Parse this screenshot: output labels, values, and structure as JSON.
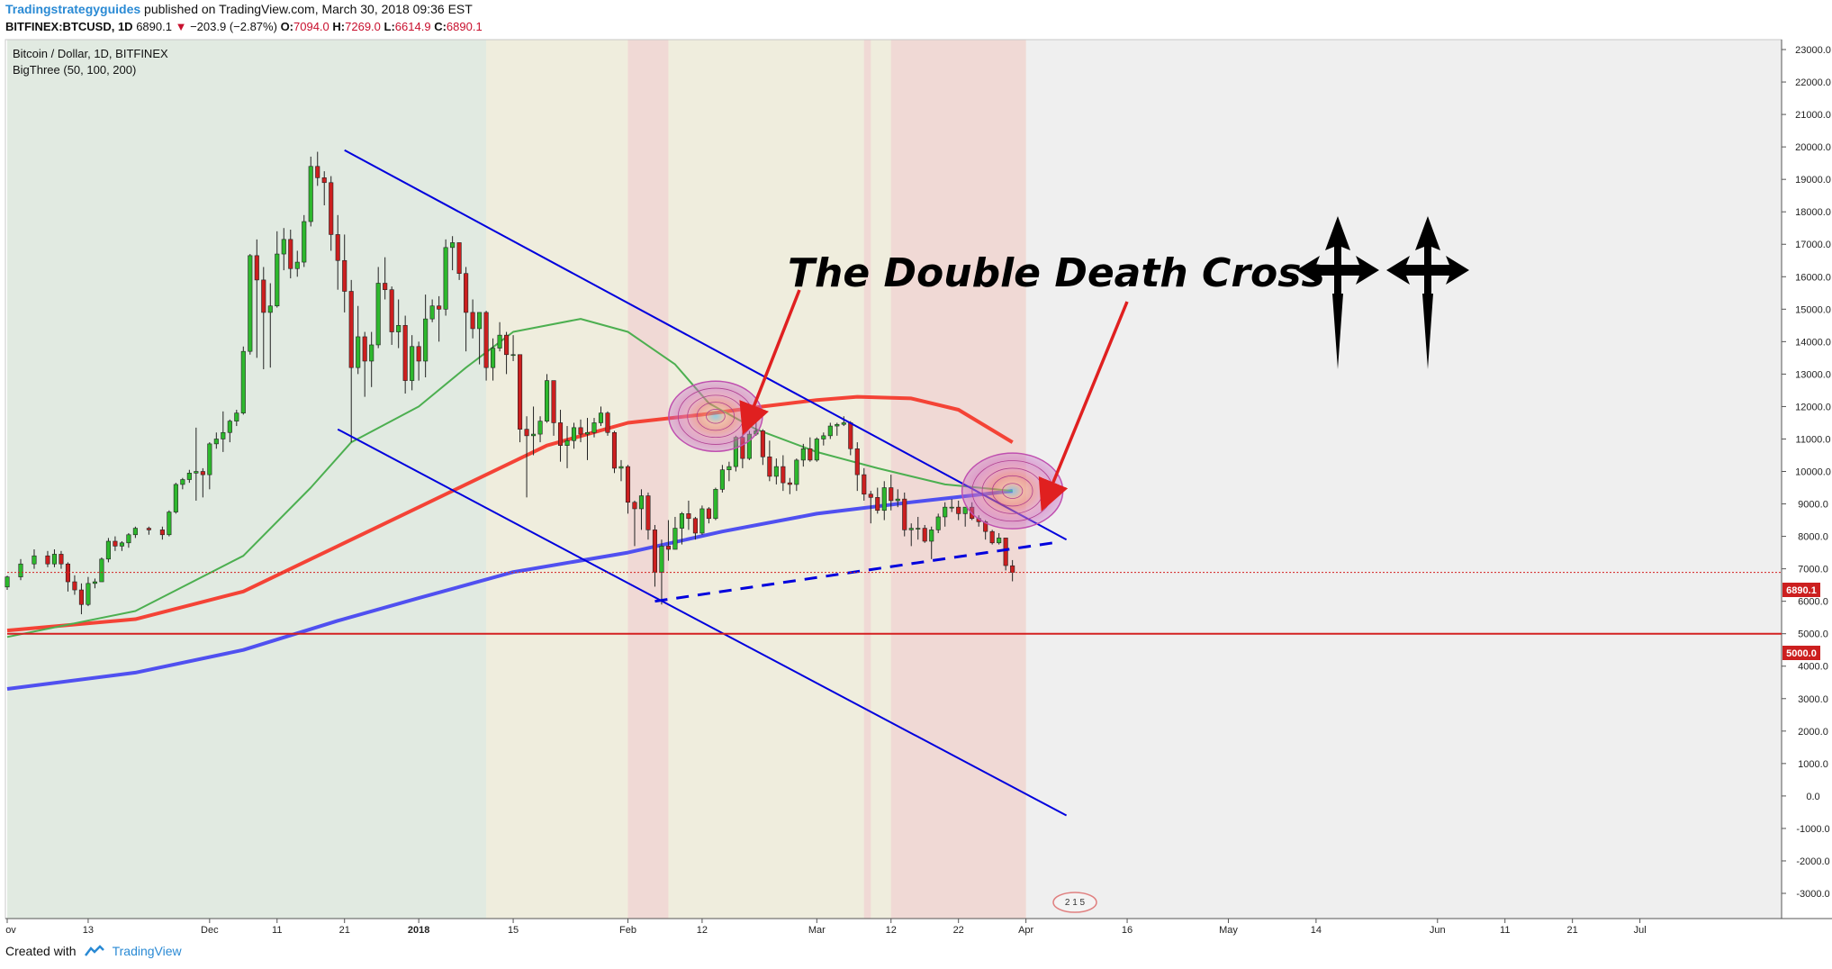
{
  "header": {
    "author": "Tradingstrategyguides",
    "published": "published on TradingView.com, March 30, 2018 09:36 EST",
    "symbol": "BITFINEX:BTCUSD, 1D",
    "last": "6890.1",
    "change": "−203.9 (−2.87%)",
    "o_label": "O:",
    "o": "7094.0",
    "h_label": "H:",
    "h": "7269.0",
    "l_label": "L:",
    "l": "6614.9",
    "c_label": "C:",
    "c": "6890.1"
  },
  "legend": {
    "title": "Bitcoin / Dollar, 1D, BITFINEX",
    "indicator": "BigThree (50, 100, 200)"
  },
  "annotation": {
    "text": "The Double Death Cross"
  },
  "price_tags": {
    "last": "6890.1",
    "level": "5000.0"
  },
  "badge": "2 1 5",
  "footer": {
    "created_with": "Created with",
    "brand": "TradingView"
  },
  "colors": {
    "up": "#2db82d",
    "down": "#cc1f1f",
    "sma50": "#4caf50",
    "sma100": "#f44336",
    "sma200": "#5050f0",
    "trend": "#0000dd",
    "level": "#d42020",
    "annotation_arrow": "#e02020"
  },
  "chart_data": {
    "type": "candlestick",
    "title": "Bitcoin / Dollar, 1D, BITFINEX",
    "y_ticks": [
      "23000.0",
      "22000.0",
      "21000.0",
      "20000.0",
      "19000.0",
      "18000.0",
      "17000.0",
      "16000.0",
      "15000.0",
      "14000.0",
      "13000.0",
      "12000.0",
      "11000.0",
      "10000.0",
      "9000.0",
      "8000.0",
      "7000.0",
      "6000.0",
      "5000.0",
      "4000.0",
      "3000.0",
      "2000.0",
      "1000.0",
      "0.0",
      "-1000.0",
      "-2000.0",
      "-3000.0"
    ],
    "ylim": [
      -3000,
      23500
    ],
    "x_ticks": [
      "ov",
      "13",
      "Dec",
      "11",
      "21",
      "2018",
      "15",
      "Feb",
      "12",
      "Mar",
      "12",
      "22",
      "Apr",
      "16",
      "May",
      "14",
      "Jun",
      "11",
      "21",
      "Jul"
    ],
    "x_tick_dates": [
      "2017-11-01",
      "2017-11-13",
      "2017-12-01",
      "2017-12-11",
      "2017-12-21",
      "2018-01-01",
      "2018-01-15",
      "2018-02-01",
      "2018-02-12",
      "2018-03-01",
      "2018-03-12",
      "2018-03-22",
      "2018-04-01",
      "2018-04-16",
      "2018-05-01",
      "2018-05-14",
      "2018-06-01",
      "2018-06-11",
      "2018-06-21",
      "2018-07-01"
    ],
    "x_start": "2017-11-01",
    "x_end": "2018-07-22",
    "candles": [
      [
        "2017-11-01",
        6440,
        6790,
        6350,
        6750
      ],
      [
        "2017-11-03",
        6750,
        7300,
        6650,
        7150
      ],
      [
        "2017-11-05",
        7150,
        7600,
        7000,
        7400
      ],
      [
        "2017-11-07",
        7400,
        7550,
        7050,
        7150
      ],
      [
        "2017-11-08",
        7150,
        7600,
        7050,
        7450
      ],
      [
        "2017-11-09",
        7450,
        7550,
        7000,
        7150
      ],
      [
        "2017-11-10",
        7150,
        7200,
        6300,
        6600
      ],
      [
        "2017-11-11",
        6600,
        6800,
        6200,
        6350
      ],
      [
        "2017-11-12",
        6350,
        6550,
        5600,
        5900
      ],
      [
        "2017-11-13",
        5900,
        6750,
        5850,
        6550
      ],
      [
        "2017-11-14",
        6550,
        6700,
        6400,
        6600
      ],
      [
        "2017-11-15",
        6600,
        7350,
        6600,
        7300
      ],
      [
        "2017-11-16",
        7300,
        7950,
        7200,
        7850
      ],
      [
        "2017-11-17",
        7850,
        8000,
        7550,
        7700
      ],
      [
        "2017-11-18",
        7700,
        7850,
        7550,
        7800
      ],
      [
        "2017-11-19",
        7800,
        8100,
        7650,
        8050
      ],
      [
        "2017-11-20",
        8050,
        8300,
        7950,
        8250
      ],
      [
        "2017-11-22",
        8250,
        8300,
        8050,
        8200
      ],
      [
        "2017-11-24",
        8200,
        8300,
        7900,
        8050
      ],
      [
        "2017-11-25",
        8050,
        8800,
        8000,
        8750
      ],
      [
        "2017-11-26",
        8750,
        9650,
        8700,
        9600
      ],
      [
        "2017-11-27",
        9600,
        9800,
        9450,
        9750
      ],
      [
        "2017-11-28",
        9750,
        10050,
        9650,
        9950
      ],
      [
        "2017-11-29",
        9950,
        11350,
        9100,
        10000
      ],
      [
        "2017-11-30",
        10000,
        10100,
        9200,
        9900
      ],
      [
        "2017-12-01",
        9900,
        10900,
        9450,
        10850
      ],
      [
        "2017-12-02",
        10850,
        11200,
        10700,
        11000
      ],
      [
        "2017-12-03",
        11000,
        11850,
        10600,
        11200
      ],
      [
        "2017-12-04",
        11200,
        11600,
        10900,
        11550
      ],
      [
        "2017-12-05",
        11550,
        11900,
        11400,
        11800
      ],
      [
        "2017-12-06",
        11800,
        13850,
        11750,
        13700
      ],
      [
        "2017-12-07",
        13700,
        16700,
        13600,
        16650
      ],
      [
        "2017-12-08",
        16650,
        17150,
        13500,
        15900
      ],
      [
        "2017-12-09",
        15900,
        16300,
        13150,
        14900
      ],
      [
        "2017-12-10",
        14900,
        15800,
        13200,
        15100
      ],
      [
        "2017-12-11",
        15100,
        17400,
        15050,
        16700
      ],
      [
        "2017-12-12",
        16700,
        17500,
        16200,
        17150
      ],
      [
        "2017-12-13",
        17150,
        17450,
        15950,
        16250
      ],
      [
        "2017-12-14",
        16250,
        16800,
        16000,
        16450
      ],
      [
        "2017-12-15",
        16450,
        17900,
        16300,
        17700
      ],
      [
        "2017-12-16",
        17700,
        19700,
        17550,
        19400
      ],
      [
        "2017-12-17",
        19400,
        19850,
        18800,
        19050
      ],
      [
        "2017-12-18",
        19050,
        19250,
        18200,
        18900
      ],
      [
        "2017-12-19",
        18900,
        19100,
        16800,
        17300
      ],
      [
        "2017-12-20",
        17300,
        17900,
        15600,
        16500
      ],
      [
        "2017-12-21",
        16500,
        17300,
        14900,
        15550
      ],
      [
        "2017-12-22",
        15550,
        15900,
        10900,
        13200
      ],
      [
        "2017-12-23",
        13200,
        15100,
        13000,
        14150
      ],
      [
        "2017-12-24",
        14150,
        14300,
        12300,
        13400
      ],
      [
        "2017-12-25",
        13400,
        14300,
        12600,
        13900
      ],
      [
        "2017-12-26",
        13900,
        16300,
        13800,
        15800
      ],
      [
        "2017-12-27",
        15800,
        16600,
        15300,
        15600
      ],
      [
        "2017-12-28",
        15600,
        15700,
        13900,
        14300
      ],
      [
        "2017-12-29",
        14300,
        15300,
        13800,
        14500
      ],
      [
        "2017-12-30",
        14500,
        14800,
        12400,
        12800
      ],
      [
        "2017-12-31",
        12800,
        14200,
        12500,
        13850
      ],
      [
        "2018-01-01",
        13850,
        14000,
        12800,
        13400
      ],
      [
        "2018-01-02",
        13400,
        15450,
        12900,
        14700
      ],
      [
        "2018-01-03",
        14700,
        15300,
        14600,
        15100
      ],
      [
        "2018-01-04",
        15100,
        15400,
        14000,
        15000
      ],
      [
        "2018-01-05",
        15000,
        17150,
        14800,
        16900
      ],
      [
        "2018-01-06",
        16900,
        17250,
        16200,
        17050
      ],
      [
        "2018-01-07",
        17050,
        17050,
        15900,
        16100
      ],
      [
        "2018-01-08",
        16100,
        16300,
        13700,
        14900
      ],
      [
        "2018-01-09",
        14900,
        15300,
        14100,
        14400
      ],
      [
        "2018-01-10",
        14400,
        14900,
        13300,
        14900
      ],
      [
        "2018-01-11",
        14900,
        14950,
        12800,
        13200
      ],
      [
        "2018-01-12",
        13200,
        14100,
        12800,
        13800
      ],
      [
        "2018-01-13",
        13800,
        14600,
        13700,
        14200
      ],
      [
        "2018-01-14",
        14200,
        14300,
        13000,
        13600
      ],
      [
        "2018-01-15",
        13600,
        14200,
        13400,
        13600
      ],
      [
        "2018-01-16",
        13600,
        13600,
        10900,
        11300
      ],
      [
        "2018-01-17",
        11300,
        11700,
        9200,
        11100
      ],
      [
        "2018-01-18",
        11100,
        12000,
        10500,
        11150
      ],
      [
        "2018-01-19",
        11150,
        11700,
        10900,
        11550
      ],
      [
        "2018-01-20",
        11550,
        13000,
        11500,
        12800
      ],
      [
        "2018-01-21",
        12800,
        12800,
        11100,
        11500
      ],
      [
        "2018-01-22",
        11500,
        11900,
        10300,
        10800
      ],
      [
        "2018-01-23",
        10800,
        11400,
        10100,
        10950
      ],
      [
        "2018-01-24",
        10950,
        11500,
        10700,
        11350
      ],
      [
        "2018-01-25",
        11350,
        11600,
        10900,
        11150
      ],
      [
        "2018-01-26",
        11150,
        11650,
        10350,
        11200
      ],
      [
        "2018-01-27",
        11200,
        11650,
        11050,
        11500
      ],
      [
        "2018-01-28",
        11500,
        12000,
        11400,
        11800
      ],
      [
        "2018-01-29",
        11800,
        11850,
        11100,
        11200
      ],
      [
        "2018-01-30",
        11200,
        11250,
        9950,
        10100
      ],
      [
        "2018-01-31",
        10100,
        10350,
        9700,
        10150
      ],
      [
        "2018-02-01",
        10150,
        10200,
        8700,
        9050
      ],
      [
        "2018-02-02",
        9050,
        9100,
        7700,
        8850
      ],
      [
        "2018-02-03",
        8850,
        9450,
        8200,
        9250
      ],
      [
        "2018-02-04",
        9250,
        9350,
        7900,
        8200
      ],
      [
        "2018-02-05",
        8200,
        8350,
        6450,
        6900
      ],
      [
        "2018-02-06",
        6900,
        7900,
        5900,
        7700
      ],
      [
        "2018-02-07",
        7700,
        8500,
        7250,
        7600
      ],
      [
        "2018-02-08",
        7600,
        8600,
        7600,
        8250
      ],
      [
        "2018-02-09",
        8250,
        8750,
        7750,
        8700
      ],
      [
        "2018-02-10",
        8700,
        9100,
        8200,
        8550
      ],
      [
        "2018-02-11",
        8550,
        8600,
        7900,
        8100
      ],
      [
        "2018-02-12",
        8100,
        8950,
        8050,
        8850
      ],
      [
        "2018-02-13",
        8850,
        8900,
        8400,
        8550
      ],
      [
        "2018-02-14",
        8550,
        9500,
        8500,
        9450
      ],
      [
        "2018-02-15",
        9450,
        10200,
        9350,
        10050
      ],
      [
        "2018-02-16",
        10050,
        10300,
        9700,
        10150
      ],
      [
        "2018-02-17",
        10150,
        11100,
        10000,
        11050
      ],
      [
        "2018-02-18",
        11050,
        11200,
        10100,
        10400
      ],
      [
        "2018-02-19",
        10400,
        11250,
        10350,
        11150
      ],
      [
        "2018-02-20",
        11150,
        11750,
        11100,
        11250
      ],
      [
        "2018-02-21",
        11250,
        11300,
        10200,
        10450
      ],
      [
        "2018-02-22",
        10450,
        10950,
        9700,
        9850
      ],
      [
        "2018-02-23",
        9850,
        10400,
        9600,
        10150
      ],
      [
        "2018-02-24",
        10150,
        10500,
        9400,
        9650
      ],
      [
        "2018-02-25",
        9650,
        9800,
        9300,
        9600
      ],
      [
        "2018-02-26",
        9600,
        10400,
        9400,
        10350
      ],
      [
        "2018-02-27",
        10350,
        10850,
        10150,
        10700
      ],
      [
        "2018-02-28",
        10700,
        11050,
        10300,
        10350
      ],
      [
        "2018-03-01",
        10350,
        11050,
        10300,
        11000
      ],
      [
        "2018-03-02",
        11000,
        11200,
        10800,
        11100
      ],
      [
        "2018-03-03",
        11100,
        11500,
        11000,
        11400
      ],
      [
        "2018-03-04",
        11400,
        11500,
        11100,
        11450
      ],
      [
        "2018-03-05",
        11450,
        11700,
        11400,
        11500
      ],
      [
        "2018-03-06",
        11500,
        11550,
        10500,
        10700
      ],
      [
        "2018-03-07",
        10700,
        10900,
        9400,
        9900
      ],
      [
        "2018-03-08",
        9900,
        10100,
        9100,
        9300
      ],
      [
        "2018-03-09",
        9300,
        9400,
        8400,
        9200
      ],
      [
        "2018-03-10",
        9200,
        9500,
        8700,
        8800
      ],
      [
        "2018-03-11",
        8800,
        9700,
        8500,
        9500
      ],
      [
        "2018-03-12",
        9500,
        9900,
        8800,
        9100
      ],
      [
        "2018-03-13",
        9100,
        9450,
        8900,
        9150
      ],
      [
        "2018-03-14",
        9150,
        9350,
        8000,
        8200
      ],
      [
        "2018-03-15",
        8200,
        8400,
        7700,
        8250
      ],
      [
        "2018-03-16",
        8250,
        8600,
        7900,
        8250
      ],
      [
        "2018-03-17",
        8250,
        8350,
        7800,
        7850
      ],
      [
        "2018-03-18",
        7850,
        8300,
        7300,
        8200
      ],
      [
        "2018-03-19",
        8200,
        8700,
        8100,
        8600
      ],
      [
        "2018-03-20",
        8600,
        9050,
        8300,
        8900
      ],
      [
        "2018-03-21",
        8900,
        9150,
        8750,
        8900
      ],
      [
        "2018-03-22",
        8900,
        9100,
        8500,
        8700
      ],
      [
        "2018-03-23",
        8700,
        8900,
        8300,
        8900
      ],
      [
        "2018-03-24",
        8900,
        9050,
        8500,
        8550
      ],
      [
        "2018-03-25",
        8550,
        8650,
        8300,
        8450
      ],
      [
        "2018-03-26",
        8450,
        8500,
        7900,
        8150
      ],
      [
        "2018-03-27",
        8150,
        8200,
        7750,
        7800
      ],
      [
        "2018-03-28",
        7800,
        8100,
        7750,
        7950
      ],
      [
        "2018-03-29",
        7950,
        7950,
        6950,
        7100
      ],
      [
        "2018-03-30",
        7094,
        7269,
        6615,
        6890
      ]
    ],
    "sma50": [
      [
        "2017-11-01",
        4900
      ],
      [
        "2017-11-20",
        5700
      ],
      [
        "2017-12-06",
        7400
      ],
      [
        "2017-12-16",
        9500
      ],
      [
        "2017-12-22",
        10900
      ],
      [
        "2018-01-01",
        12000
      ],
      [
        "2018-01-08",
        13200
      ],
      [
        "2018-01-15",
        14300
      ],
      [
        "2018-01-25",
        14700
      ],
      [
        "2018-02-01",
        14300
      ],
      [
        "2018-02-08",
        13300
      ],
      [
        "2018-02-13",
        12100
      ],
      [
        "2018-02-20",
        11300
      ],
      [
        "2018-03-01",
        10600
      ],
      [
        "2018-03-10",
        10100
      ],
      [
        "2018-03-20",
        9600
      ],
      [
        "2018-03-30",
        9400
      ]
    ],
    "sma100": [
      [
        "2017-11-01",
        5100
      ],
      [
        "2017-11-20",
        5450
      ],
      [
        "2017-12-06",
        6300
      ],
      [
        "2017-12-20",
        7700
      ],
      [
        "2018-01-01",
        8900
      ],
      [
        "2018-01-08",
        9600
      ],
      [
        "2018-01-20",
        10800
      ],
      [
        "2018-02-01",
        11500
      ],
      [
        "2018-02-12",
        11750
      ],
      [
        "2018-02-21",
        12000
      ],
      [
        "2018-03-01",
        12200
      ],
      [
        "2018-03-07",
        12300
      ],
      [
        "2018-03-15",
        12250
      ],
      [
        "2018-03-22",
        11900
      ],
      [
        "2018-03-30",
        10900
      ]
    ],
    "sma200": [
      [
        "2017-11-01",
        3300
      ],
      [
        "2017-11-20",
        3800
      ],
      [
        "2017-12-06",
        4500
      ],
      [
        "2017-12-20",
        5400
      ],
      [
        "2018-01-01",
        6100
      ],
      [
        "2018-01-15",
        6900
      ],
      [
        "2018-02-01",
        7500
      ],
      [
        "2018-02-15",
        8150
      ],
      [
        "2018-03-01",
        8700
      ],
      [
        "2018-03-15",
        9050
      ],
      [
        "2018-03-30",
        9400
      ]
    ],
    "channel_upper": [
      [
        "2017-12-21",
        19900
      ],
      [
        "2018-04-07",
        7900
      ]
    ],
    "channel_lower": [
      [
        "2017-12-20",
        11300
      ],
      [
        "2018-04-07",
        -600
      ]
    ],
    "support_dashed": [
      [
        "2018-02-05",
        6000
      ],
      [
        "2018-04-05",
        7800
      ]
    ],
    "horizontal_level": 5000,
    "last_price": 6890.1,
    "highlight_bands": [
      {
        "from": "2017-11-01",
        "to": "2018-01-11",
        "tint": "green"
      },
      {
        "from": "2018-01-11",
        "to": "2018-04-01",
        "tint": "yellow"
      },
      {
        "from": "2018-02-01",
        "to": "2018-02-07",
        "tint": "red"
      },
      {
        "from": "2018-03-08",
        "to": "2018-03-09",
        "tint": "red"
      },
      {
        "from": "2018-03-12",
        "to": "2018-04-01",
        "tint": "red"
      }
    ],
    "cross_markers": [
      [
        "2018-02-14",
        11700
      ],
      [
        "2018-03-30",
        9400
      ]
    ]
  }
}
